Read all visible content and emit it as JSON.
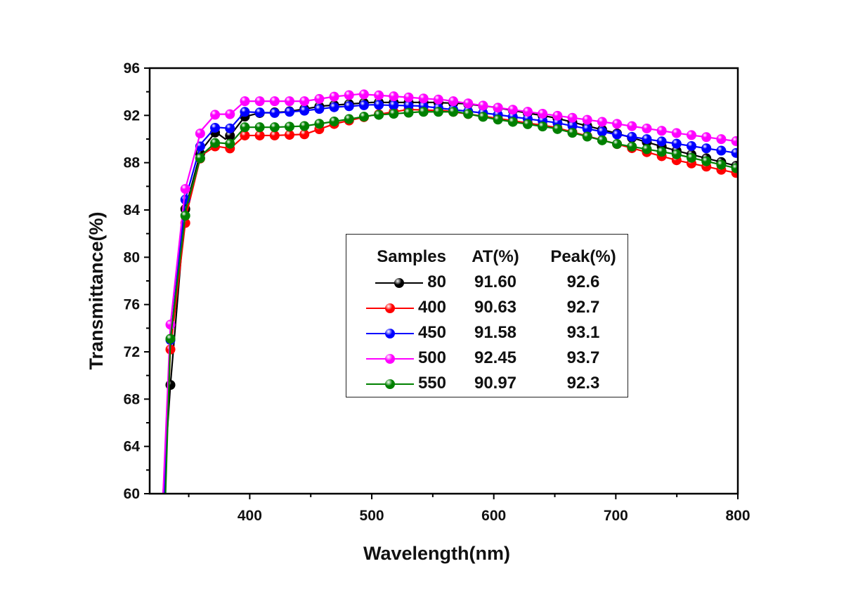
{
  "chart_data": {
    "type": "line",
    "title": "",
    "xlabel": "Wavelength(nm)",
    "ylabel": "Transmittance(%)",
    "xlim": [
      318,
      800
    ],
    "ylim": [
      60,
      96
    ],
    "xticks": [
      400,
      500,
      600,
      700,
      800
    ],
    "yticks": [
      60,
      64,
      68,
      72,
      76,
      80,
      84,
      88,
      92,
      96
    ],
    "grid": false,
    "legend_position": "center",
    "legend_headers": [
      "Samples",
      "AT(%)",
      "Peak(%)"
    ],
    "series": [
      {
        "name": "80",
        "at": "91.60",
        "peak": "92.6",
        "color": "#000000",
        "x": [
          329,
          335,
          347,
          360,
          372,
          380,
          384,
          396,
          408,
          430,
          460,
          500,
          550,
          575,
          600,
          650,
          700,
          750,
          800
        ],
        "y": [
          60,
          69.2,
          84,
          89,
          90.6,
          90.0,
          90.3,
          91.9,
          92.2,
          92.3,
          92.8,
          93.1,
          93.1,
          93.0,
          92.7,
          91.8,
          90.5,
          89.0,
          87.7
        ]
      },
      {
        "name": "400",
        "at": "90.63",
        "peak": "92.7",
        "color": "#ff0000",
        "x": [
          330,
          335,
          348,
          360,
          372,
          384,
          396,
          420,
          445,
          470,
          500,
          530,
          560,
          600,
          650,
          700,
          750,
          800
        ],
        "y": [
          60,
          72.2,
          83.6,
          88.6,
          89.4,
          89.2,
          90.3,
          90.3,
          90.4,
          91.3,
          92.0,
          92.5,
          92.4,
          91.8,
          91.0,
          89.6,
          88.2,
          87.1
        ]
      },
      {
        "name": "450",
        "at": "91.58",
        "peak": "93.1",
        "color": "#0000ff",
        "x": [
          330,
          335,
          347,
          360,
          372,
          384,
          396,
          420,
          445,
          470,
          500,
          540,
          600,
          650,
          700,
          750,
          800
        ],
        "y": [
          60,
          73,
          84.8,
          89.6,
          91.0,
          90.9,
          92.3,
          92.2,
          92.4,
          92.7,
          92.9,
          92.8,
          92.1,
          91.4,
          90.4,
          89.6,
          88.8
        ]
      },
      {
        "name": "500",
        "at": "92.45",
        "peak": "93.7",
        "color": "#ff00ff",
        "x": [
          329,
          335,
          347,
          360,
          372,
          384,
          396,
          420,
          445,
          470,
          490,
          520,
          560,
          600,
          650,
          700,
          750,
          800
        ],
        "y": [
          60,
          74.3,
          85.7,
          90.7,
          92.1,
          92.1,
          93.2,
          93.2,
          93.2,
          93.6,
          93.8,
          93.6,
          93.3,
          92.7,
          92.0,
          91.3,
          90.5,
          89.8
        ]
      },
      {
        "name": "550",
        "at": "90.97",
        "peak": "92.3",
        "color": "#008000",
        "x": [
          331,
          335,
          348,
          360,
          372,
          384,
          396,
          420,
          445,
          470,
          500,
          540,
          570,
          600,
          650,
          700,
          750,
          800
        ],
        "y": [
          60,
          73.1,
          84.2,
          88.6,
          89.7,
          89.6,
          91.0,
          91.0,
          91.1,
          91.5,
          92.0,
          92.3,
          92.3,
          91.7,
          90.9,
          89.6,
          88.7,
          87.5
        ]
      }
    ]
  }
}
